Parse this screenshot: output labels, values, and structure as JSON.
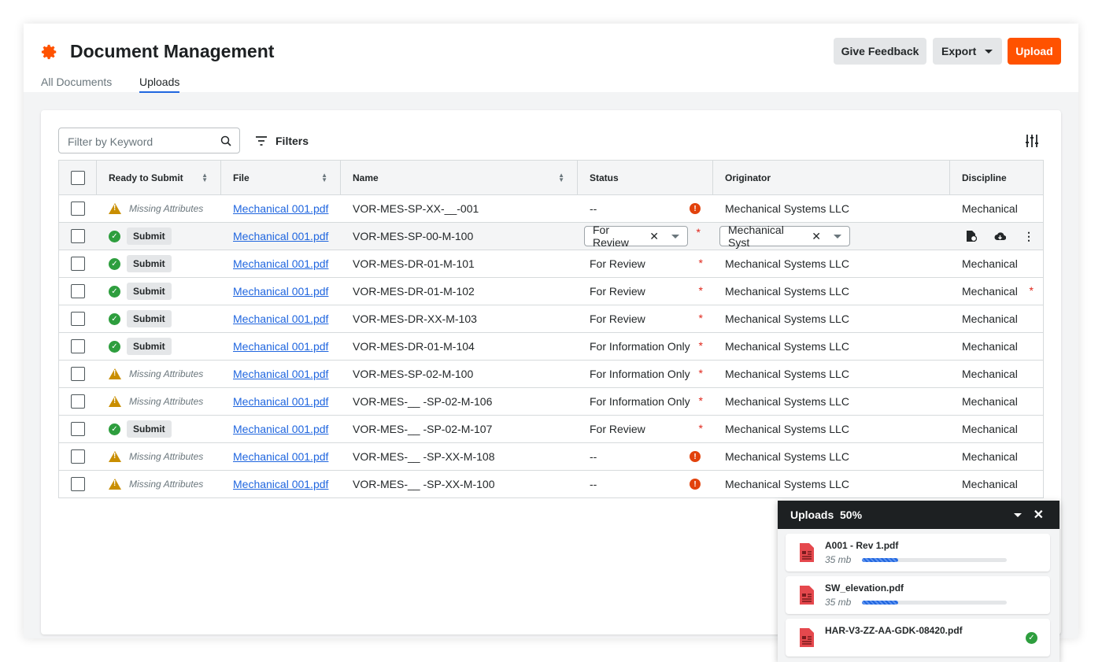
{
  "header": {
    "title": "Document Management",
    "tabs": [
      "All Documents",
      "Uploads"
    ],
    "active_tab": "Uploads",
    "buttons": {
      "feedback": "Give Feedback",
      "export": "Export",
      "upload": "Upload"
    },
    "accent": "#ff5200"
  },
  "toolbar": {
    "search_placeholder": "Filter by Keyword",
    "filters": "Filters"
  },
  "table": {
    "columns": [
      "Ready to Submit",
      "File",
      "Name",
      "Status",
      "Originator",
      "Discipline"
    ],
    "rows": [
      {
        "ready": "missing",
        "ready_label": "Missing Attributes",
        "file": "Mechanical 001.pdf",
        "name": "VOR-MES-SP-XX-__-001",
        "status": "--",
        "status_flag": "error",
        "originator": "Mechanical Systems LLC",
        "discipline": "Mechanical"
      },
      {
        "ready": "ok",
        "ready_label": "Submit",
        "file": "Mechanical 001.pdf",
        "name": "VOR-MES-SP-00-M-100",
        "status": "For Review",
        "status_flag": "required",
        "originator": "Mechanical Syst",
        "discipline": "",
        "editing": true
      },
      {
        "ready": "ok",
        "ready_label": "Submit",
        "file": "Mechanical 001.pdf",
        "name": "VOR-MES-DR-01-M-101",
        "status": "For Review",
        "status_flag": "required",
        "originator": "Mechanical Systems LLC",
        "discipline": "Mechanical"
      },
      {
        "ready": "ok",
        "ready_label": "Submit",
        "file": "Mechanical 001.pdf",
        "name": "VOR-MES-DR-01-M-102",
        "status": "For Review",
        "status_flag": "required",
        "originator": "Mechanical Systems LLC",
        "discipline": "Mechanical",
        "discipline_required": true
      },
      {
        "ready": "ok",
        "ready_label": "Submit",
        "file": "Mechanical 001.pdf",
        "name": "VOR-MES-DR-XX-M-103",
        "status": "For Review",
        "status_flag": "required",
        "originator": "Mechanical Systems LLC",
        "discipline": "Mechanical"
      },
      {
        "ready": "ok",
        "ready_label": "Submit",
        "file": "Mechanical 001.pdf",
        "name": "VOR-MES-DR-01-M-104",
        "status": "For Information Only",
        "status_flag": "required",
        "originator": "Mechanical Systems LLC",
        "discipline": "Mechanical"
      },
      {
        "ready": "missing",
        "ready_label": "Missing Attributes",
        "file": "Mechanical 001.pdf",
        "name": "VOR-MES-SP-02-M-100",
        "status": "For Information Only",
        "status_flag": "required",
        "originator": "Mechanical Systems LLC",
        "discipline": "Mechanical"
      },
      {
        "ready": "missing",
        "ready_label": "Missing Attributes",
        "file": "Mechanical 001.pdf",
        "name": "VOR-MES-__ -SP-02-M-106",
        "status": "For Information Only",
        "status_flag": "required",
        "originator": "Mechanical Systems LLC",
        "discipline": "Mechanical"
      },
      {
        "ready": "ok",
        "ready_label": "Submit",
        "file": "Mechanical 001.pdf",
        "name": "VOR-MES-__ -SP-02-M-107",
        "status": "For Review",
        "status_flag": "required",
        "originator": "Mechanical Systems LLC",
        "discipline": "Mechanical"
      },
      {
        "ready": "missing",
        "ready_label": "Missing Attributes",
        "file": "Mechanical 001.pdf",
        "name": "VOR-MES-__ -SP-XX-M-108",
        "status": "--",
        "status_flag": "error",
        "originator": "Mechanical Systems LLC",
        "discipline": "Mechanical"
      },
      {
        "ready": "missing",
        "ready_label": "Missing Attributes",
        "file": "Mechanical 001.pdf",
        "name": "VOR-MES-__ -SP-XX-M-100",
        "status": "--",
        "status_flag": "error",
        "originator": "Mechanical Systems LLC",
        "discipline": "Mechanical"
      }
    ]
  },
  "uploads": {
    "title": "Uploads",
    "percent": "50%",
    "items": [
      {
        "name": "A001 - Rev 1.pdf",
        "size": "35 mb",
        "progress": 25
      },
      {
        "name": "SW_elevation.pdf",
        "size": "35 mb",
        "progress": 25
      },
      {
        "name": "HAR-V3-ZZ-AA-GDK-08420.pdf",
        "complete": true
      }
    ]
  }
}
